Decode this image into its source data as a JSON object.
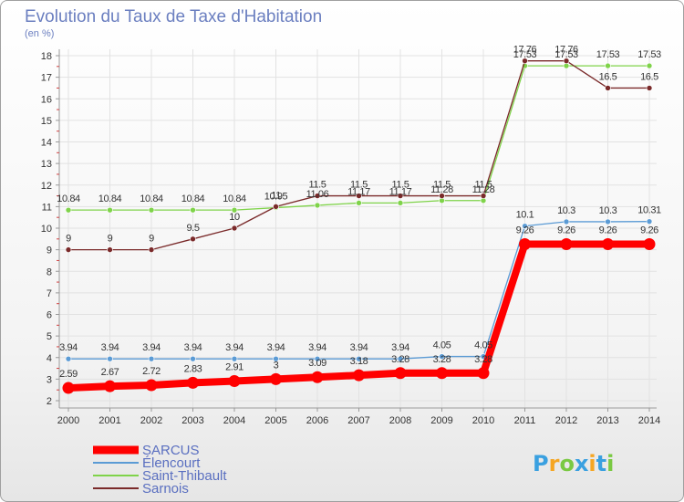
{
  "chart_data": {
    "type": "line",
    "title": "Evolution du Taux de Taxe d'Habitation",
    "subtitle": "(en %)",
    "xlabel": "",
    "ylabel": "",
    "ylim": [
      2,
      18
    ],
    "yticks": [
      2,
      3,
      4,
      5,
      6,
      7,
      8,
      9,
      10,
      11,
      12,
      13,
      14,
      15,
      16,
      17,
      18
    ],
    "categories": [
      "2000",
      "2001",
      "2002",
      "2003",
      "2004",
      "2005",
      "2006",
      "2007",
      "2008",
      "2009",
      "2010",
      "2011",
      "2012",
      "2013",
      "2014"
    ],
    "series": [
      {
        "name": "SARCUS",
        "color": "#ff0000",
        "values": [
          2.59,
          2.67,
          2.72,
          2.83,
          2.91,
          3,
          3.09,
          3.18,
          3.28,
          3.28,
          3.28,
          9.26,
          9.26,
          9.26,
          9.26
        ],
        "labels": [
          "2.59",
          "2.67",
          "2.72",
          "2.83",
          "2.91",
          "3",
          "3.09",
          "3.18",
          "3.28",
          "3.28",
          "3.28",
          "9.26",
          "9.26",
          "9.26",
          "9.26"
        ]
      },
      {
        "name": "Élencourt",
        "color": "#5b9bd5",
        "values": [
          3.94,
          3.94,
          3.94,
          3.94,
          3.94,
          3.94,
          3.94,
          3.94,
          3.94,
          4.05,
          4.05,
          10.1,
          10.3,
          10.3,
          10.31
        ],
        "labels": [
          "3.94",
          "3.94",
          "3.94",
          "3.94",
          "3.94",
          "3.94",
          "3.94",
          "3.94",
          "3.94",
          "4.05",
          "4.05",
          "10.1",
          "10.3",
          "10.3",
          "10.31"
        ]
      },
      {
        "name": "Saint-Thibault",
        "color": "#7fd34a",
        "values": [
          10.84,
          10.84,
          10.84,
          10.84,
          10.84,
          10.95,
          11.06,
          11.17,
          11.17,
          11.28,
          11.28,
          17.53,
          17.53,
          17.53,
          17.53
        ],
        "labels": [
          "10.84",
          "10.84",
          "10.84",
          "10.84",
          "10.84",
          "10.95",
          "11.06",
          "11.17",
          "11.17",
          "11.28",
          "11.28",
          "17.53",
          "17.53",
          "17.53",
          "17.53"
        ]
      },
      {
        "name": "Sarnois",
        "color": "#7a2a2a",
        "values": [
          9,
          9,
          9,
          9.5,
          10,
          11,
          11.5,
          11.5,
          11.5,
          11.5,
          11.5,
          17.76,
          17.76,
          16.5,
          16.5
        ],
        "labels": [
          "9",
          "9",
          "9",
          "9.5",
          "10",
          "11",
          "11.5",
          "11.5",
          "11.5",
          "11.5",
          "11.5",
          "17.76",
          "17.76",
          "16.5",
          "16.5"
        ]
      }
    ],
    "legend": [
      "SARCUS",
      "Élencourt",
      "Saint-Thibault",
      "Sarnois"
    ],
    "legend_position": "bottom-left",
    "grid": true
  },
  "brand": {
    "letters": [
      "P",
      "r",
      "o",
      "x",
      "i",
      "t",
      "i"
    ],
    "colors": [
      "#3aa0e0",
      "#f5a623",
      "#7ac943",
      "#3aa0e0",
      "#f5a623",
      "#3aa0e0",
      "#7ac943"
    ]
  }
}
